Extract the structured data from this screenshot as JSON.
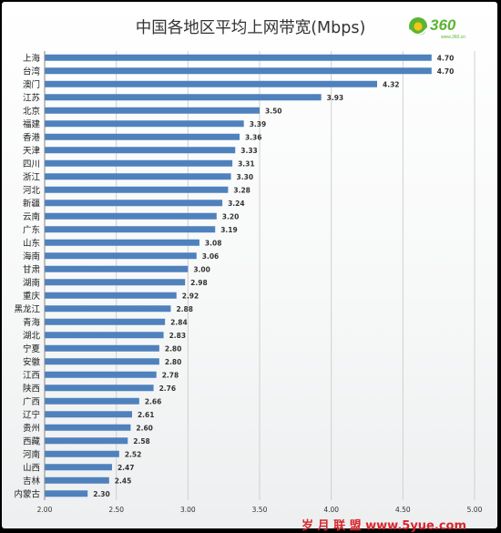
{
  "chart_data": {
    "type": "bar",
    "orientation": "horizontal",
    "title": "中国各地区平均上网带宽(Mbps)",
    "categories": [
      "上海",
      "台湾",
      "澳门",
      "江苏",
      "北京",
      "福建",
      "香港",
      "天津",
      "四川",
      "浙江",
      "河北",
      "新疆",
      "云南",
      "广东",
      "山东",
      "海南",
      "甘肃",
      "湖南",
      "重庆",
      "黑龙江",
      "青海",
      "湖北",
      "宁夏",
      "安徽",
      "江西",
      "陕西",
      "广西",
      "辽宁",
      "贵州",
      "西藏",
      "河南",
      "山西",
      "吉林",
      "内蒙古"
    ],
    "values": [
      4.7,
      4.7,
      4.32,
      3.93,
      3.5,
      3.39,
      3.36,
      3.33,
      3.31,
      3.3,
      3.28,
      3.24,
      3.2,
      3.19,
      3.08,
      3.06,
      3.0,
      2.98,
      2.92,
      2.88,
      2.84,
      2.83,
      2.8,
      2.8,
      2.78,
      2.76,
      2.66,
      2.61,
      2.6,
      2.58,
      2.52,
      2.47,
      2.45,
      2.3
    ],
    "value_labels": [
      "4.70",
      "4.70",
      "4.32",
      "3.93",
      "3.50",
      "3.39",
      "3.36",
      "3.33",
      "3.31",
      "3.30",
      "3.28",
      "3.24",
      "3.20",
      "3.19",
      "3.08",
      "3.06",
      "3.00",
      "2.98",
      "2.92",
      "2.88",
      "2.84",
      "2.83",
      "2.80",
      "2.80",
      "2.78",
      "2.76",
      "2.66",
      "2.61",
      "2.60",
      "2.58",
      "2.52",
      "2.47",
      "2.45",
      "2.30"
    ],
    "xlim": [
      2.0,
      5.0
    ],
    "x_ticks": [
      "2.00",
      "2.50",
      "3.00",
      "3.50",
      "4.00",
      "4.50",
      "5.00"
    ],
    "grid": "vertical",
    "bar_color": "#4f81bd"
  },
  "logo": {
    "text": "360",
    "subtext": "www.360.cn",
    "green": "#5bb531",
    "yellow": "#f5c518"
  },
  "watermark": {
    "text": "岁 月 联 盟   www.5yue.com",
    "color": "#d7262c"
  }
}
